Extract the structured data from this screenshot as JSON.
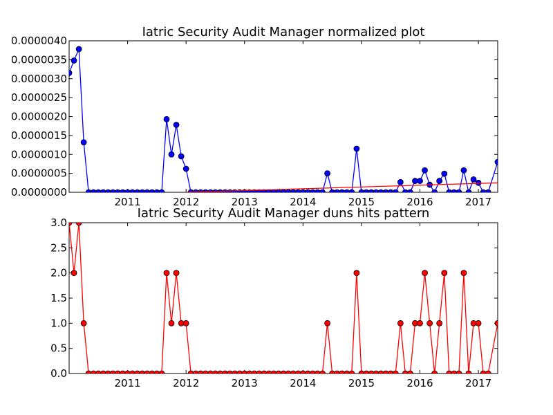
{
  "chart_data": [
    {
      "type": "line",
      "title": "Iatric Security Audit Manager normalized plot",
      "xlabel": "",
      "ylabel": "",
      "xlim": [
        2010.0,
        2017.33
      ],
      "ylim": [
        0,
        4e-06
      ],
      "x_ticks": [
        "2011",
        "2012",
        "2013",
        "2014",
        "2015",
        "2016",
        "2017"
      ],
      "y_ticks": [
        "0.0000000",
        "0.0000005",
        "0.0000010",
        "0.0000015",
        "0.0000020",
        "0.0000025",
        "0.0000030",
        "0.0000035",
        "0.0000040"
      ],
      "grid": false,
      "series": [
        {
          "color": "#0000ff",
          "marker": "circle",
          "points": [
            [
              2010.0,
              3.15e-06
            ],
            [
              2010.083,
              3.48e-06
            ],
            [
              2010.167,
              3.78e-06
            ],
            [
              2010.25,
              1.32e-06
            ],
            [
              2010.333,
              0
            ],
            [
              2010.417,
              0
            ],
            [
              2010.5,
              0
            ],
            [
              2010.583,
              0
            ],
            [
              2010.667,
              0
            ],
            [
              2010.75,
              0
            ],
            [
              2010.833,
              0
            ],
            [
              2010.917,
              0
            ],
            [
              2011.0,
              0
            ],
            [
              2011.083,
              0
            ],
            [
              2011.167,
              0
            ],
            [
              2011.25,
              0
            ],
            [
              2011.333,
              0
            ],
            [
              2011.417,
              0
            ],
            [
              2011.5,
              0
            ],
            [
              2011.583,
              0
            ],
            [
              2011.667,
              1.93e-06
            ],
            [
              2011.75,
              1e-06
            ],
            [
              2011.833,
              1.78e-06
            ],
            [
              2011.917,
              9.5e-07
            ],
            [
              2012.0,
              6.2e-07
            ],
            [
              2012.083,
              0
            ],
            [
              2012.167,
              0
            ],
            [
              2012.25,
              0
            ],
            [
              2012.333,
              0
            ],
            [
              2012.417,
              0
            ],
            [
              2012.5,
              0
            ],
            [
              2012.583,
              0
            ],
            [
              2012.667,
              0
            ],
            [
              2012.75,
              0
            ],
            [
              2012.833,
              0
            ],
            [
              2012.917,
              0
            ],
            [
              2013.0,
              0
            ],
            [
              2013.083,
              0
            ],
            [
              2013.167,
              0
            ],
            [
              2013.25,
              0
            ],
            [
              2013.333,
              0
            ],
            [
              2013.417,
              0
            ],
            [
              2013.5,
              0
            ],
            [
              2013.583,
              0
            ],
            [
              2013.667,
              0
            ],
            [
              2013.75,
              0
            ],
            [
              2013.833,
              0
            ],
            [
              2013.917,
              0
            ],
            [
              2014.0,
              0
            ],
            [
              2014.083,
              0
            ],
            [
              2014.167,
              0
            ],
            [
              2014.25,
              0
            ],
            [
              2014.333,
              0
            ],
            [
              2014.417,
              5e-07
            ],
            [
              2014.5,
              0
            ],
            [
              2014.583,
              0
            ],
            [
              2014.667,
              0
            ],
            [
              2014.75,
              0
            ],
            [
              2014.833,
              0
            ],
            [
              2014.917,
              1.15e-06
            ],
            [
              2015.0,
              0
            ],
            [
              2015.083,
              0
            ],
            [
              2015.167,
              0
            ],
            [
              2015.25,
              0
            ],
            [
              2015.333,
              0
            ],
            [
              2015.417,
              0
            ],
            [
              2015.5,
              0
            ],
            [
              2015.583,
              0
            ],
            [
              2015.667,
              2.7e-07
            ],
            [
              2015.75,
              0
            ],
            [
              2015.833,
              0
            ],
            [
              2015.917,
              3e-07
            ],
            [
              2016.0,
              3e-07
            ],
            [
              2016.083,
              5.8e-07
            ],
            [
              2016.167,
              2e-07
            ],
            [
              2016.25,
              0
            ],
            [
              2016.333,
              3e-07
            ],
            [
              2016.417,
              4.9e-07
            ],
            [
              2016.5,
              0
            ],
            [
              2016.583,
              0
            ],
            [
              2016.667,
              0
            ],
            [
              2016.75,
              5.8e-07
            ],
            [
              2016.833,
              0
            ],
            [
              2016.917,
              3.4e-07
            ],
            [
              2017.0,
              2.5e-07
            ],
            [
              2017.083,
              0
            ],
            [
              2017.167,
              0
            ],
            [
              2017.33,
              8e-07
            ]
          ]
        },
        {
          "color": "#ff0000",
          "marker": "none",
          "points": [
            [
              2012.0,
              0.0
            ],
            [
              2017.33,
              2.5e-07
            ]
          ]
        }
      ]
    },
    {
      "type": "line",
      "title": "Iatric Security Audit Manager duns hits pattern",
      "xlabel": "",
      "ylabel": "",
      "xlim": [
        2010.0,
        2017.33
      ],
      "ylim": [
        0,
        3.0
      ],
      "x_ticks": [
        "2011",
        "2012",
        "2013",
        "2014",
        "2015",
        "2016",
        "2017"
      ],
      "y_ticks": [
        "0.0",
        "0.5",
        "1.0",
        "1.5",
        "2.0",
        "2.5",
        "3.0"
      ],
      "grid": false,
      "series": [
        {
          "color": "#ff0000",
          "marker": "circle",
          "points": [
            [
              2010.0,
              3
            ],
            [
              2010.083,
              2
            ],
            [
              2010.167,
              3
            ],
            [
              2010.25,
              1
            ],
            [
              2010.333,
              0
            ],
            [
              2010.417,
              0
            ],
            [
              2010.5,
              0
            ],
            [
              2010.583,
              0
            ],
            [
              2010.667,
              0
            ],
            [
              2010.75,
              0
            ],
            [
              2010.833,
              0
            ],
            [
              2010.917,
              0
            ],
            [
              2011.0,
              0
            ],
            [
              2011.083,
              0
            ],
            [
              2011.167,
              0
            ],
            [
              2011.25,
              0
            ],
            [
              2011.333,
              0
            ],
            [
              2011.417,
              0
            ],
            [
              2011.5,
              0
            ],
            [
              2011.583,
              0
            ],
            [
              2011.667,
              2
            ],
            [
              2011.75,
              1
            ],
            [
              2011.833,
              2
            ],
            [
              2011.917,
              1
            ],
            [
              2012.0,
              1
            ],
            [
              2012.083,
              0
            ],
            [
              2012.167,
              0
            ],
            [
              2012.25,
              0
            ],
            [
              2012.333,
              0
            ],
            [
              2012.417,
              0
            ],
            [
              2012.5,
              0
            ],
            [
              2012.583,
              0
            ],
            [
              2012.667,
              0
            ],
            [
              2012.75,
              0
            ],
            [
              2012.833,
              0
            ],
            [
              2012.917,
              0
            ],
            [
              2013.0,
              0
            ],
            [
              2013.083,
              0
            ],
            [
              2013.167,
              0
            ],
            [
              2013.25,
              0
            ],
            [
              2013.333,
              0
            ],
            [
              2013.417,
              0
            ],
            [
              2013.5,
              0
            ],
            [
              2013.583,
              0
            ],
            [
              2013.667,
              0
            ],
            [
              2013.75,
              0
            ],
            [
              2013.833,
              0
            ],
            [
              2013.917,
              0
            ],
            [
              2014.0,
              0
            ],
            [
              2014.083,
              0
            ],
            [
              2014.167,
              0
            ],
            [
              2014.25,
              0
            ],
            [
              2014.333,
              0
            ],
            [
              2014.417,
              1
            ],
            [
              2014.5,
              0
            ],
            [
              2014.583,
              0
            ],
            [
              2014.667,
              0
            ],
            [
              2014.75,
              0
            ],
            [
              2014.833,
              0
            ],
            [
              2014.917,
              2
            ],
            [
              2015.0,
              0
            ],
            [
              2015.083,
              0
            ],
            [
              2015.167,
              0
            ],
            [
              2015.25,
              0
            ],
            [
              2015.333,
              0
            ],
            [
              2015.417,
              0
            ],
            [
              2015.5,
              0
            ],
            [
              2015.583,
              0
            ],
            [
              2015.667,
              1
            ],
            [
              2015.75,
              0
            ],
            [
              2015.833,
              0
            ],
            [
              2015.917,
              1
            ],
            [
              2016.0,
              1
            ],
            [
              2016.083,
              2
            ],
            [
              2016.167,
              1
            ],
            [
              2016.25,
              0
            ],
            [
              2016.333,
              1
            ],
            [
              2016.417,
              2
            ],
            [
              2016.5,
              0
            ],
            [
              2016.583,
              0
            ],
            [
              2016.667,
              0
            ],
            [
              2016.75,
              2
            ],
            [
              2016.833,
              0
            ],
            [
              2016.917,
              1
            ],
            [
              2017.0,
              1
            ],
            [
              2017.083,
              0
            ],
            [
              2017.167,
              0
            ],
            [
              2017.33,
              1
            ]
          ]
        }
      ]
    }
  ]
}
